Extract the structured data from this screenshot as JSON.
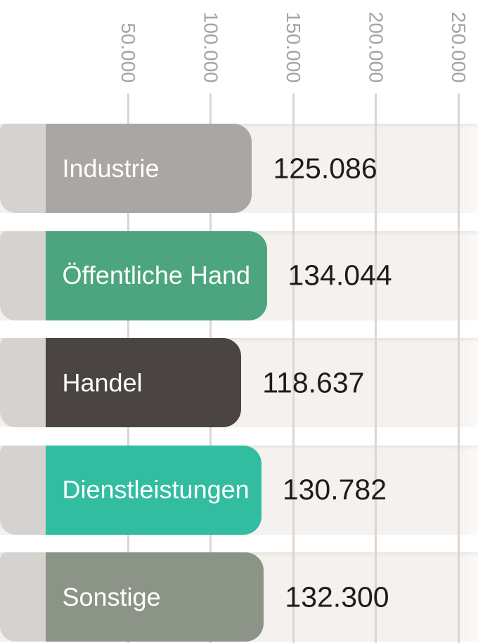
{
  "chart_data": {
    "type": "bar",
    "orientation": "horizontal",
    "title": "",
    "categories": [
      "Industrie",
      "Öffentliche Hand",
      "Handel",
      "Dienstleistungen",
      "Sonstige"
    ],
    "values": [
      125086,
      134044,
      118637,
      130782,
      132300
    ],
    "value_labels": [
      "125.086",
      "134.044",
      "118.637",
      "130.782",
      "132.300"
    ],
    "bar_colors": [
      "#aaa6a3",
      "#4ca57e",
      "#4a4543",
      "#32bda0",
      "#8b9486"
    ],
    "xticks": [
      50000,
      100000,
      150000,
      200000,
      250000
    ],
    "xtick_labels": [
      "50.000",
      "100.000",
      "150.000",
      "200.000",
      "250.000"
    ],
    "xlim": [
      0,
      262000
    ],
    "grid": true,
    "tick_position": "top-rotated-90",
    "legend": "none",
    "colors": {
      "background": "#ffffff",
      "row_band": "#f5f1ee",
      "bar_cap": "#d5d2d0",
      "gridline": "#dad6d3",
      "tick_text": "#a6a3a0",
      "value_text": "#1e1c1a",
      "bar_label_text": "#ffffff"
    }
  }
}
